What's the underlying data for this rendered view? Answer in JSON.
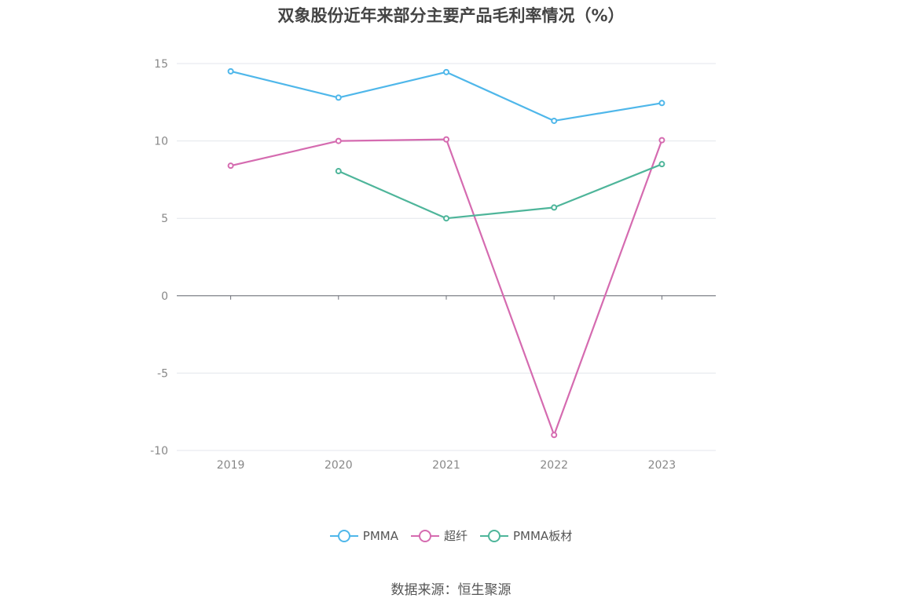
{
  "chart_data": {
    "type": "line",
    "title": "双象股份近年来部分主要产品毛利率情况（%）",
    "categories": [
      "2019",
      "2020",
      "2021",
      "2022",
      "2023"
    ],
    "series": [
      {
        "name": "PMMA",
        "color": "#4fb7ea",
        "values": [
          14.5,
          12.8,
          14.45,
          11.3,
          12.45
        ]
      },
      {
        "name": "超纤",
        "color": "#d56bb0",
        "values": [
          8.4,
          10.0,
          10.1,
          -9.0,
          10.05
        ]
      },
      {
        "name": "PMMA板材",
        "color": "#4eb59a",
        "values": [
          null,
          8.05,
          5.0,
          5.7,
          8.5
        ]
      }
    ],
    "y_ticks": [
      "15",
      "10",
      "5",
      "0",
      "-5",
      "-10"
    ],
    "ylim": [
      -10,
      15
    ],
    "grid": true,
    "legend_position": "bottom"
  },
  "footer": {
    "source": "数据来源：恒生聚源"
  }
}
